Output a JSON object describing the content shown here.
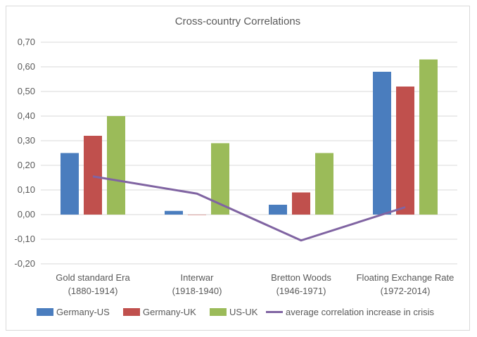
{
  "chart_data": {
    "type": "bar",
    "title": "Cross-country Correlations",
    "xlabel": "",
    "ylabel": "",
    "ylim": [
      -0.2,
      0.7
    ],
    "yticks": [
      "0,70",
      "0,60",
      "0,50",
      "0,40",
      "0,30",
      "0,20",
      "0,10",
      "0,00",
      "-0,10",
      "-0,20"
    ],
    "categories": [
      {
        "line1": "Gold standard Era",
        "line2": "(1880-1914)"
      },
      {
        "line1": "Interwar",
        "line2": "(1918-1940)"
      },
      {
        "line1": "Bretton Woods",
        "line2": "(1946-1971)"
      },
      {
        "line1": "Floating Exchange Rate",
        "line2": "(1972-2014)"
      }
    ],
    "series": [
      {
        "name": "Germany-US",
        "color": "#4a7dbe",
        "values": [
          0.25,
          0.015,
          0.04,
          0.58
        ]
      },
      {
        "name": "Germany-UK",
        "color": "#c0504d",
        "values": [
          0.32,
          0.0,
          0.09,
          0.52
        ]
      },
      {
        "name": "US-UK",
        "color": "#9bbb59",
        "values": [
          0.4,
          0.29,
          0.25,
          0.63
        ]
      }
    ],
    "line_series": {
      "name": "average correlation increase in crisis",
      "color": "#8064a2",
      "values": [
        0.155,
        0.085,
        -0.105,
        0.03
      ]
    },
    "grid": true,
    "legend": "bottom"
  }
}
